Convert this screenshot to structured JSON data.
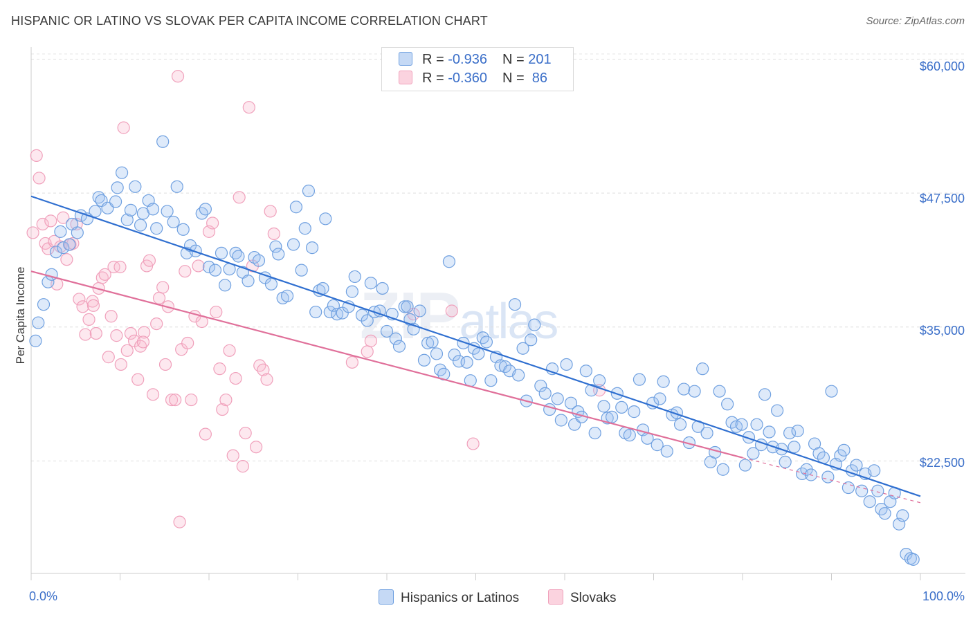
{
  "header": {
    "title": "HISPANIC OR LATINO VS SLOVAK PER CAPITA INCOME CORRELATION CHART",
    "source": "Source: ZipAtlas.com"
  },
  "watermark": {
    "zip": "ZIP",
    "atlas": "atlas"
  },
  "legend": {
    "rows": [
      {
        "r_label": "R = ",
        "r_value": "-0.936",
        "n_label": "N = ",
        "n_value": "201",
        "color": "#6fa0e0"
      },
      {
        "r_label": "R = ",
        "r_value": "-0.360",
        "n_label": "N = ",
        "n_value": " 86",
        "color": "#f0a0bb"
      }
    ]
  },
  "bottom_legend": {
    "items": [
      {
        "label": "Hispanics or Latinos",
        "color": "#6fa0e0"
      },
      {
        "label": "Slovaks",
        "color": "#f0a0bb"
      }
    ]
  },
  "chart_data": {
    "type": "scatter",
    "title": "HISPANIC OR LATINO VS SLOVAK PER CAPITA INCOME CORRELATION CHART",
    "xlabel": "",
    "ylabel": "Per Capita Income",
    "xlim": [
      0,
      100
    ],
    "ylim": [
      12000,
      61000
    ],
    "x_tick_labels": [
      "0.0%",
      "100.0%"
    ],
    "y_ticks": [
      22500,
      35000,
      47500,
      60000
    ],
    "y_tick_labels": [
      "$22,500",
      "$35,000",
      "$47,500",
      "$60,000"
    ],
    "grid": true,
    "legend_position": "top-center",
    "series": [
      {
        "name": "Hispanics or Latinos",
        "color": "#6fa0e0",
        "trend": {
          "x": [
            0,
            100
          ],
          "y": [
            47200,
            19200
          ]
        },
        "points": [
          [
            0.5,
            33700
          ],
          [
            0.8,
            35400
          ],
          [
            1.4,
            37100
          ],
          [
            1.9,
            39200
          ],
          [
            2.3,
            39900
          ],
          [
            2.8,
            42000
          ],
          [
            3.3,
            43900
          ],
          [
            3.6,
            42400
          ],
          [
            4.3,
            42700
          ],
          [
            4.6,
            44600
          ],
          [
            5.2,
            43800
          ],
          [
            5.6,
            45400
          ],
          [
            6.3,
            45100
          ],
          [
            7.2,
            45800
          ],
          [
            7.6,
            47100
          ],
          [
            7.9,
            46800
          ],
          [
            8.6,
            46100
          ],
          [
            9.5,
            46700
          ],
          [
            9.7,
            48000
          ],
          [
            10.2,
            49400
          ],
          [
            10.8,
            45000
          ],
          [
            11.2,
            45900
          ],
          [
            11.7,
            48100
          ],
          [
            12.3,
            44500
          ],
          [
            12.6,
            45600
          ],
          [
            13.2,
            46800
          ],
          [
            13.7,
            46000
          ],
          [
            14.1,
            44200
          ],
          [
            14.8,
            52300
          ],
          [
            15.3,
            45800
          ],
          [
            16.0,
            44800
          ],
          [
            16.4,
            48100
          ],
          [
            17.1,
            44100
          ],
          [
            17.5,
            41900
          ],
          [
            17.9,
            42600
          ],
          [
            18.5,
            42100
          ],
          [
            19.2,
            45600
          ],
          [
            19.6,
            46000
          ],
          [
            20.0,
            40600
          ],
          [
            20.7,
            40300
          ],
          [
            21.4,
            41900
          ],
          [
            21.8,
            38900
          ],
          [
            22.3,
            40400
          ],
          [
            23.0,
            41900
          ],
          [
            23.3,
            41600
          ],
          [
            23.8,
            40100
          ],
          [
            24.4,
            39300
          ],
          [
            25.1,
            41500
          ],
          [
            25.6,
            41200
          ],
          [
            26.3,
            39600
          ],
          [
            27.0,
            39000
          ],
          [
            27.5,
            42500
          ],
          [
            27.8,
            41800
          ],
          [
            28.3,
            37700
          ],
          [
            28.8,
            37900
          ],
          [
            29.5,
            42700
          ],
          [
            29.8,
            46200
          ],
          [
            30.4,
            40300
          ],
          [
            30.8,
            44200
          ],
          [
            31.2,
            47700
          ],
          [
            31.6,
            42400
          ],
          [
            32.0,
            36400
          ],
          [
            32.4,
            38400
          ],
          [
            32.8,
            38600
          ],
          [
            33.1,
            45100
          ],
          [
            33.6,
            36400
          ],
          [
            34.0,
            37000
          ],
          [
            34.4,
            36200
          ],
          [
            35.0,
            36300
          ],
          [
            35.7,
            36900
          ],
          [
            36.1,
            38300
          ],
          [
            36.4,
            39700
          ],
          [
            37.2,
            36100
          ],
          [
            37.8,
            35600
          ],
          [
            38.2,
            39100
          ],
          [
            38.6,
            36400
          ],
          [
            39.2,
            36500
          ],
          [
            39.5,
            38600
          ],
          [
            40.0,
            34600
          ],
          [
            40.6,
            36200
          ],
          [
            41.0,
            33900
          ],
          [
            41.4,
            33200
          ],
          [
            42.0,
            36900
          ],
          [
            42.3,
            36900
          ],
          [
            42.6,
            35700
          ],
          [
            43.0,
            34800
          ],
          [
            43.7,
            36500
          ],
          [
            44.2,
            31900
          ],
          [
            44.6,
            33500
          ],
          [
            45.1,
            33600
          ],
          [
            45.6,
            32500
          ],
          [
            46.0,
            31000
          ],
          [
            46.4,
            30600
          ],
          [
            47.0,
            41100
          ],
          [
            47.6,
            32400
          ],
          [
            48.1,
            31800
          ],
          [
            48.6,
            33500
          ],
          [
            49.0,
            31700
          ],
          [
            49.4,
            30000
          ],
          [
            49.8,
            33000
          ],
          [
            50.3,
            32500
          ],
          [
            50.8,
            34000
          ],
          [
            51.2,
            33600
          ],
          [
            51.7,
            30000
          ],
          [
            52.3,
            32200
          ],
          [
            52.8,
            31400
          ],
          [
            53.3,
            31300
          ],
          [
            53.8,
            30900
          ],
          [
            54.4,
            37100
          ],
          [
            54.8,
            30500
          ],
          [
            55.3,
            33000
          ],
          [
            55.7,
            28100
          ],
          [
            56.2,
            33800
          ],
          [
            56.6,
            35200
          ],
          [
            57.3,
            29500
          ],
          [
            57.8,
            28800
          ],
          [
            58.3,
            27300
          ],
          [
            58.6,
            31100
          ],
          [
            59.2,
            28300
          ],
          [
            59.6,
            26300
          ],
          [
            60.2,
            31500
          ],
          [
            60.7,
            27900
          ],
          [
            61.1,
            25900
          ],
          [
            61.5,
            27100
          ],
          [
            61.9,
            26600
          ],
          [
            62.4,
            30900
          ],
          [
            63.0,
            29100
          ],
          [
            63.4,
            25100
          ],
          [
            63.9,
            30000
          ],
          [
            64.4,
            27600
          ],
          [
            64.8,
            26500
          ],
          [
            65.3,
            26600
          ],
          [
            65.9,
            28800
          ],
          [
            66.4,
            27500
          ],
          [
            66.8,
            25100
          ],
          [
            67.3,
            24900
          ],
          [
            67.8,
            27100
          ],
          [
            68.4,
            30100
          ],
          [
            68.8,
            25400
          ],
          [
            69.3,
            24600
          ],
          [
            69.9,
            27900
          ],
          [
            70.4,
            24000
          ],
          [
            70.7,
            28300
          ],
          [
            71.1,
            29900
          ],
          [
            71.5,
            23400
          ],
          [
            72.1,
            26800
          ],
          [
            72.6,
            27000
          ],
          [
            73.0,
            25900
          ],
          [
            73.4,
            29200
          ],
          [
            74.0,
            24200
          ],
          [
            74.6,
            29000
          ],
          [
            75.0,
            25700
          ],
          [
            75.5,
            31100
          ],
          [
            76.0,
            25100
          ],
          [
            76.4,
            22400
          ],
          [
            76.9,
            23300
          ],
          [
            77.4,
            29000
          ],
          [
            77.8,
            21700
          ],
          [
            78.3,
            27800
          ],
          [
            78.8,
            26100
          ],
          [
            79.3,
            25700
          ],
          [
            79.9,
            25900
          ],
          [
            80.3,
            22100
          ],
          [
            80.7,
            24700
          ],
          [
            81.2,
            23200
          ],
          [
            81.6,
            25900
          ],
          [
            82.1,
            24000
          ],
          [
            82.5,
            28700
          ],
          [
            83.0,
            25200
          ],
          [
            83.4,
            23800
          ],
          [
            83.9,
            27200
          ],
          [
            84.4,
            23600
          ],
          [
            84.8,
            22400
          ],
          [
            85.3,
            25100
          ],
          [
            85.8,
            23800
          ],
          [
            86.2,
            25300
          ],
          [
            86.7,
            21300
          ],
          [
            87.2,
            21700
          ],
          [
            87.7,
            21200
          ],
          [
            88.1,
            24100
          ],
          [
            88.6,
            23200
          ],
          [
            89.1,
            22800
          ],
          [
            89.6,
            21000
          ],
          [
            90.0,
            29000
          ],
          [
            90.5,
            22200
          ],
          [
            91.0,
            23000
          ],
          [
            91.4,
            23500
          ],
          [
            91.9,
            20000
          ],
          [
            92.3,
            21600
          ],
          [
            92.8,
            22100
          ],
          [
            93.4,
            19700
          ],
          [
            93.8,
            21300
          ],
          [
            94.3,
            18700
          ],
          [
            94.8,
            21600
          ],
          [
            95.2,
            19700
          ],
          [
            95.6,
            18000
          ],
          [
            96.0,
            17600
          ],
          [
            96.6,
            18700
          ],
          [
            97.1,
            19500
          ],
          [
            97.6,
            16600
          ],
          [
            98.0,
            17400
          ],
          [
            98.4,
            13800
          ],
          [
            98.9,
            13400
          ],
          [
            99.2,
            13300
          ]
        ]
      },
      {
        "name": "Slovaks",
        "color": "#f0a0bb",
        "trend_solid": {
          "x": [
            0,
            80
          ],
          "y": [
            40200,
            22800
          ]
        },
        "trend_dashed": {
          "x": [
            80,
            100
          ],
          "y": [
            22800,
            18600
          ]
        },
        "points": [
          [
            0.2,
            43800
          ],
          [
            0.6,
            51000
          ],
          [
            0.9,
            48900
          ],
          [
            1.3,
            44600
          ],
          [
            1.6,
            42800
          ],
          [
            1.9,
            42300
          ],
          [
            2.2,
            44900
          ],
          [
            2.6,
            43000
          ],
          [
            2.9,
            39000
          ],
          [
            3.3,
            42500
          ],
          [
            3.6,
            45200
          ],
          [
            4.0,
            41300
          ],
          [
            4.4,
            42700
          ],
          [
            4.7,
            42800
          ],
          [
            5.1,
            44600
          ],
          [
            5.4,
            37600
          ],
          [
            5.8,
            36900
          ],
          [
            6.1,
            34300
          ],
          [
            6.5,
            35700
          ],
          [
            6.9,
            37400
          ],
          [
            7.3,
            34400
          ],
          [
            7.6,
            38600
          ],
          [
            8.0,
            39600
          ],
          [
            8.3,
            39900
          ],
          [
            8.7,
            32200
          ],
          [
            9.0,
            36000
          ],
          [
            9.3,
            40600
          ],
          [
            9.6,
            34200
          ],
          [
            10.0,
            40600
          ],
          [
            10.4,
            53600
          ],
          [
            10.8,
            32800
          ],
          [
            11.2,
            34400
          ],
          [
            11.6,
            33700
          ],
          [
            12.0,
            30100
          ],
          [
            12.3,
            33200
          ],
          [
            12.7,
            34500
          ],
          [
            13.0,
            40700
          ],
          [
            13.3,
            41200
          ],
          [
            13.7,
            28700
          ],
          [
            14.1,
            35300
          ],
          [
            14.4,
            37700
          ],
          [
            14.8,
            38700
          ],
          [
            15.1,
            31500
          ],
          [
            15.4,
            36900
          ],
          [
            15.8,
            28200
          ],
          [
            16.2,
            28200
          ],
          [
            16.5,
            58400
          ],
          [
            16.9,
            32900
          ],
          [
            17.3,
            40200
          ],
          [
            17.6,
            33500
          ],
          [
            18.0,
            28200
          ],
          [
            18.4,
            36000
          ],
          [
            18.8,
            40700
          ],
          [
            19.2,
            35500
          ],
          [
            19.6,
            25000
          ],
          [
            20.0,
            43900
          ],
          [
            20.4,
            44700
          ],
          [
            20.8,
            36400
          ],
          [
            21.2,
            31100
          ],
          [
            21.5,
            27300
          ],
          [
            21.9,
            28200
          ],
          [
            22.3,
            32800
          ],
          [
            22.7,
            23000
          ],
          [
            23.0,
            30200
          ],
          [
            23.4,
            47100
          ],
          [
            23.8,
            22000
          ],
          [
            24.1,
            25100
          ],
          [
            24.5,
            55500
          ],
          [
            24.9,
            40700
          ],
          [
            25.3,
            23800
          ],
          [
            25.7,
            31400
          ],
          [
            26.1,
            31000
          ],
          [
            26.5,
            30100
          ],
          [
            26.9,
            45800
          ],
          [
            27.3,
            43700
          ],
          [
            36.1,
            31700
          ],
          [
            37.8,
            32700
          ],
          [
            38.2,
            33700
          ],
          [
            43.0,
            36200
          ],
          [
            47.3,
            36500
          ],
          [
            49.7,
            24100
          ],
          [
            63.9,
            29100
          ],
          [
            16.7,
            16800
          ],
          [
            12.6,
            33600
          ],
          [
            7.0,
            37000
          ],
          [
            10.1,
            31500
          ]
        ]
      }
    ]
  }
}
